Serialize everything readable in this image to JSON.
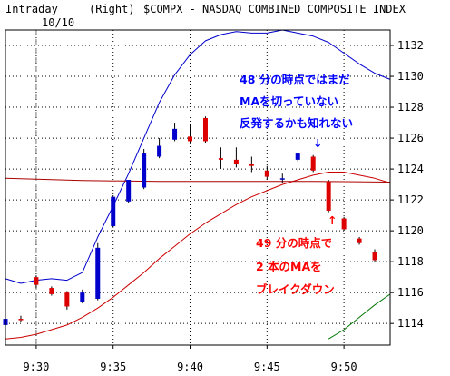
{
  "header": {
    "mode": "Intraday",
    "axis_side": "(Right)",
    "symbol_title": "$COMPX - NASDAQ COMBINED COMPOSITE INDEX",
    "date_marker": "10/10"
  },
  "annotations": {
    "blue_note": [
      "48 分の時点ではまだ",
      "MAを切っていない",
      "反発するかも知れない"
    ],
    "red_note": [
      "49 分の時点で",
      "2 本のMAを",
      "ブレイクダウン"
    ],
    "blue_arrow": "↓",
    "red_arrow": "↑"
  },
  "colors": {
    "up_candle": "#0000cc",
    "down_candle": "#dd0000",
    "blue_ma": "#0000cc",
    "red_ma": "#cc0000",
    "flat_line": "#aa0000",
    "green_line": "#007700",
    "grid": "#000000",
    "blue_text": "#0000ff",
    "red_text": "#ff0000"
  },
  "chart_data": {
    "type": "candlestick",
    "title": "$COMPX - NASDAQ COMBINED COMPOSITE INDEX",
    "interval": "1 minute",
    "xlim": [
      "9:28",
      "9:53"
    ],
    "ylim": [
      1112.6,
      1133.0
    ],
    "x_ticks": [
      "9:30",
      "9:35",
      "9:40",
      "9:45",
      "9:50"
    ],
    "y_ticks": [
      1114,
      1116,
      1118,
      1120,
      1122,
      1124,
      1126,
      1128,
      1130,
      1132
    ],
    "grid": true,
    "candles": [
      {
        "t": "9:28",
        "o": 1113.9,
        "h": 1114.3,
        "l": 1113.8,
        "c": 1114.3
      },
      {
        "t": "9:29",
        "o": 1114.3,
        "h": 1114.5,
        "l": 1114.1,
        "c": 1114.25
      },
      {
        "t": "9:30",
        "o": 1117.0,
        "h": 1117.1,
        "l": 1116.3,
        "c": 1116.5
      },
      {
        "t": "9:31",
        "o": 1116.3,
        "h": 1116.4,
        "l": 1115.8,
        "c": 1115.9
      },
      {
        "t": "9:32",
        "o": 1116.0,
        "h": 1116.1,
        "l": 1114.9,
        "c": 1115.1
      },
      {
        "t": "9:33",
        "o": 1115.4,
        "h": 1116.2,
        "l": 1115.3,
        "c": 1116.0
      },
      {
        "t": "9:34",
        "o": 1115.6,
        "h": 1119.2,
        "l": 1115.5,
        "c": 1118.9
      },
      {
        "t": "9:35",
        "o": 1120.3,
        "h": 1122.3,
        "l": 1120.2,
        "c": 1122.2
      },
      {
        "t": "9:36",
        "o": 1121.9,
        "h": 1123.3,
        "l": 1121.8,
        "c": 1123.3
      },
      {
        "t": "9:37",
        "o": 1122.8,
        "h": 1125.3,
        "l": 1122.7,
        "c": 1125.0
      },
      {
        "t": "9:38",
        "o": 1124.8,
        "h": 1126.0,
        "l": 1124.7,
        "c": 1125.5
      },
      {
        "t": "9:39",
        "o": 1125.9,
        "h": 1127.0,
        "l": 1125.8,
        "c": 1126.6
      },
      {
        "t": "9:40",
        "o": 1126.1,
        "h": 1126.9,
        "l": 1125.6,
        "c": 1125.8
      },
      {
        "t": "9:41",
        "o": 1127.3,
        "h": 1127.4,
        "l": 1125.7,
        "c": 1125.8
      },
      {
        "t": "9:42",
        "o": 1124.7,
        "h": 1125.4,
        "l": 1124.0,
        "c": 1124.6
      },
      {
        "t": "9:43",
        "o": 1124.6,
        "h": 1125.4,
        "l": 1124.1,
        "c": 1124.3
      },
      {
        "t": "9:44",
        "o": 1124.3,
        "h": 1124.8,
        "l": 1123.8,
        "c": 1124.2
      },
      {
        "t": "9:45",
        "o": 1123.9,
        "h": 1124.2,
        "l": 1123.3,
        "c": 1123.5
      },
      {
        "t": "9:46",
        "o": 1123.4,
        "h": 1123.7,
        "l": 1123.1,
        "c": 1123.4
      },
      {
        "t": "9:47",
        "o": 1124.6,
        "h": 1125.0,
        "l": 1124.5,
        "c": 1125.0
      },
      {
        "t": "9:48",
        "o": 1124.8,
        "h": 1124.9,
        "l": 1123.8,
        "c": 1123.9
      },
      {
        "t": "9:49",
        "o": 1123.2,
        "h": 1123.3,
        "l": 1121.2,
        "c": 1121.3
      },
      {
        "t": "9:50",
        "o": 1120.8,
        "h": 1120.9,
        "l": 1120.0,
        "c": 1120.1
      },
      {
        "t": "9:51",
        "o": 1119.5,
        "h": 1119.6,
        "l": 1119.1,
        "c": 1119.2
      },
      {
        "t": "9:52",
        "o": 1118.6,
        "h": 1118.8,
        "l": 1118.0,
        "c": 1118.1
      }
    ],
    "lines": [
      {
        "style": "blue",
        "points": [
          [
            "9:28",
            1116.9
          ],
          [
            "9:29",
            1116.6
          ],
          [
            "9:30",
            1116.8
          ],
          [
            "9:31",
            1116.9
          ],
          [
            "9:32",
            1116.8
          ],
          [
            "9:33",
            1117.3
          ],
          [
            "9:34",
            1119.6
          ],
          [
            "9:35",
            1121.6
          ],
          [
            "9:36",
            1123.7
          ],
          [
            "9:37",
            1126.0
          ],
          [
            "9:38",
            1128.3
          ],
          [
            "9:39",
            1130.1
          ],
          [
            "9:40",
            1131.4
          ],
          [
            "9:41",
            1132.3
          ],
          [
            "9:42",
            1132.7
          ],
          [
            "9:43",
            1132.9
          ],
          [
            "9:44",
            1132.8
          ],
          [
            "9:45",
            1132.8
          ],
          [
            "9:46",
            1133.0
          ],
          [
            "9:47",
            1132.8
          ],
          [
            "9:48",
            1132.6
          ],
          [
            "9:49",
            1132.2
          ],
          [
            "9:50",
            1131.5
          ],
          [
            "9:51",
            1130.8
          ],
          [
            "9:52",
            1130.2
          ],
          [
            "9:53",
            1129.8
          ]
        ]
      },
      {
        "style": "red",
        "points": [
          [
            "9:28",
            1113.0
          ],
          [
            "9:29",
            1113.1
          ],
          [
            "9:30",
            1113.3
          ],
          [
            "9:31",
            1113.6
          ],
          [
            "9:32",
            1113.9
          ],
          [
            "9:33",
            1114.4
          ],
          [
            "9:34",
            1115.0
          ],
          [
            "9:35",
            1115.7
          ],
          [
            "9:36",
            1116.5
          ],
          [
            "9:37",
            1117.3
          ],
          [
            "9:38",
            1118.2
          ],
          [
            "9:39",
            1119.0
          ],
          [
            "9:40",
            1119.8
          ],
          [
            "9:41",
            1120.5
          ],
          [
            "9:42",
            1121.1
          ],
          [
            "9:43",
            1121.7
          ],
          [
            "9:44",
            1122.2
          ],
          [
            "9:45",
            1122.6
          ],
          [
            "9:46",
            1123.0
          ],
          [
            "9:47",
            1123.3
          ],
          [
            "9:48",
            1123.6
          ],
          [
            "9:49",
            1123.8
          ],
          [
            "9:50",
            1123.8
          ],
          [
            "9:51",
            1123.6
          ],
          [
            "9:52",
            1123.4
          ],
          [
            "9:53",
            1123.1
          ]
        ]
      },
      {
        "style": "flat",
        "points": [
          [
            "9:28",
            1123.4
          ],
          [
            "9:33",
            1123.25
          ],
          [
            "9:38",
            1123.2
          ],
          [
            "9:43",
            1123.2
          ],
          [
            "9:48",
            1123.2
          ],
          [
            "9:53",
            1123.15
          ]
        ]
      },
      {
        "style": "green",
        "points": [
          [
            "9:49",
            1113.0
          ],
          [
            "9:50",
            1113.6
          ],
          [
            "9:51",
            1114.4
          ],
          [
            "9:52",
            1115.2
          ],
          [
            "9:53",
            1115.9
          ]
        ]
      }
    ]
  }
}
